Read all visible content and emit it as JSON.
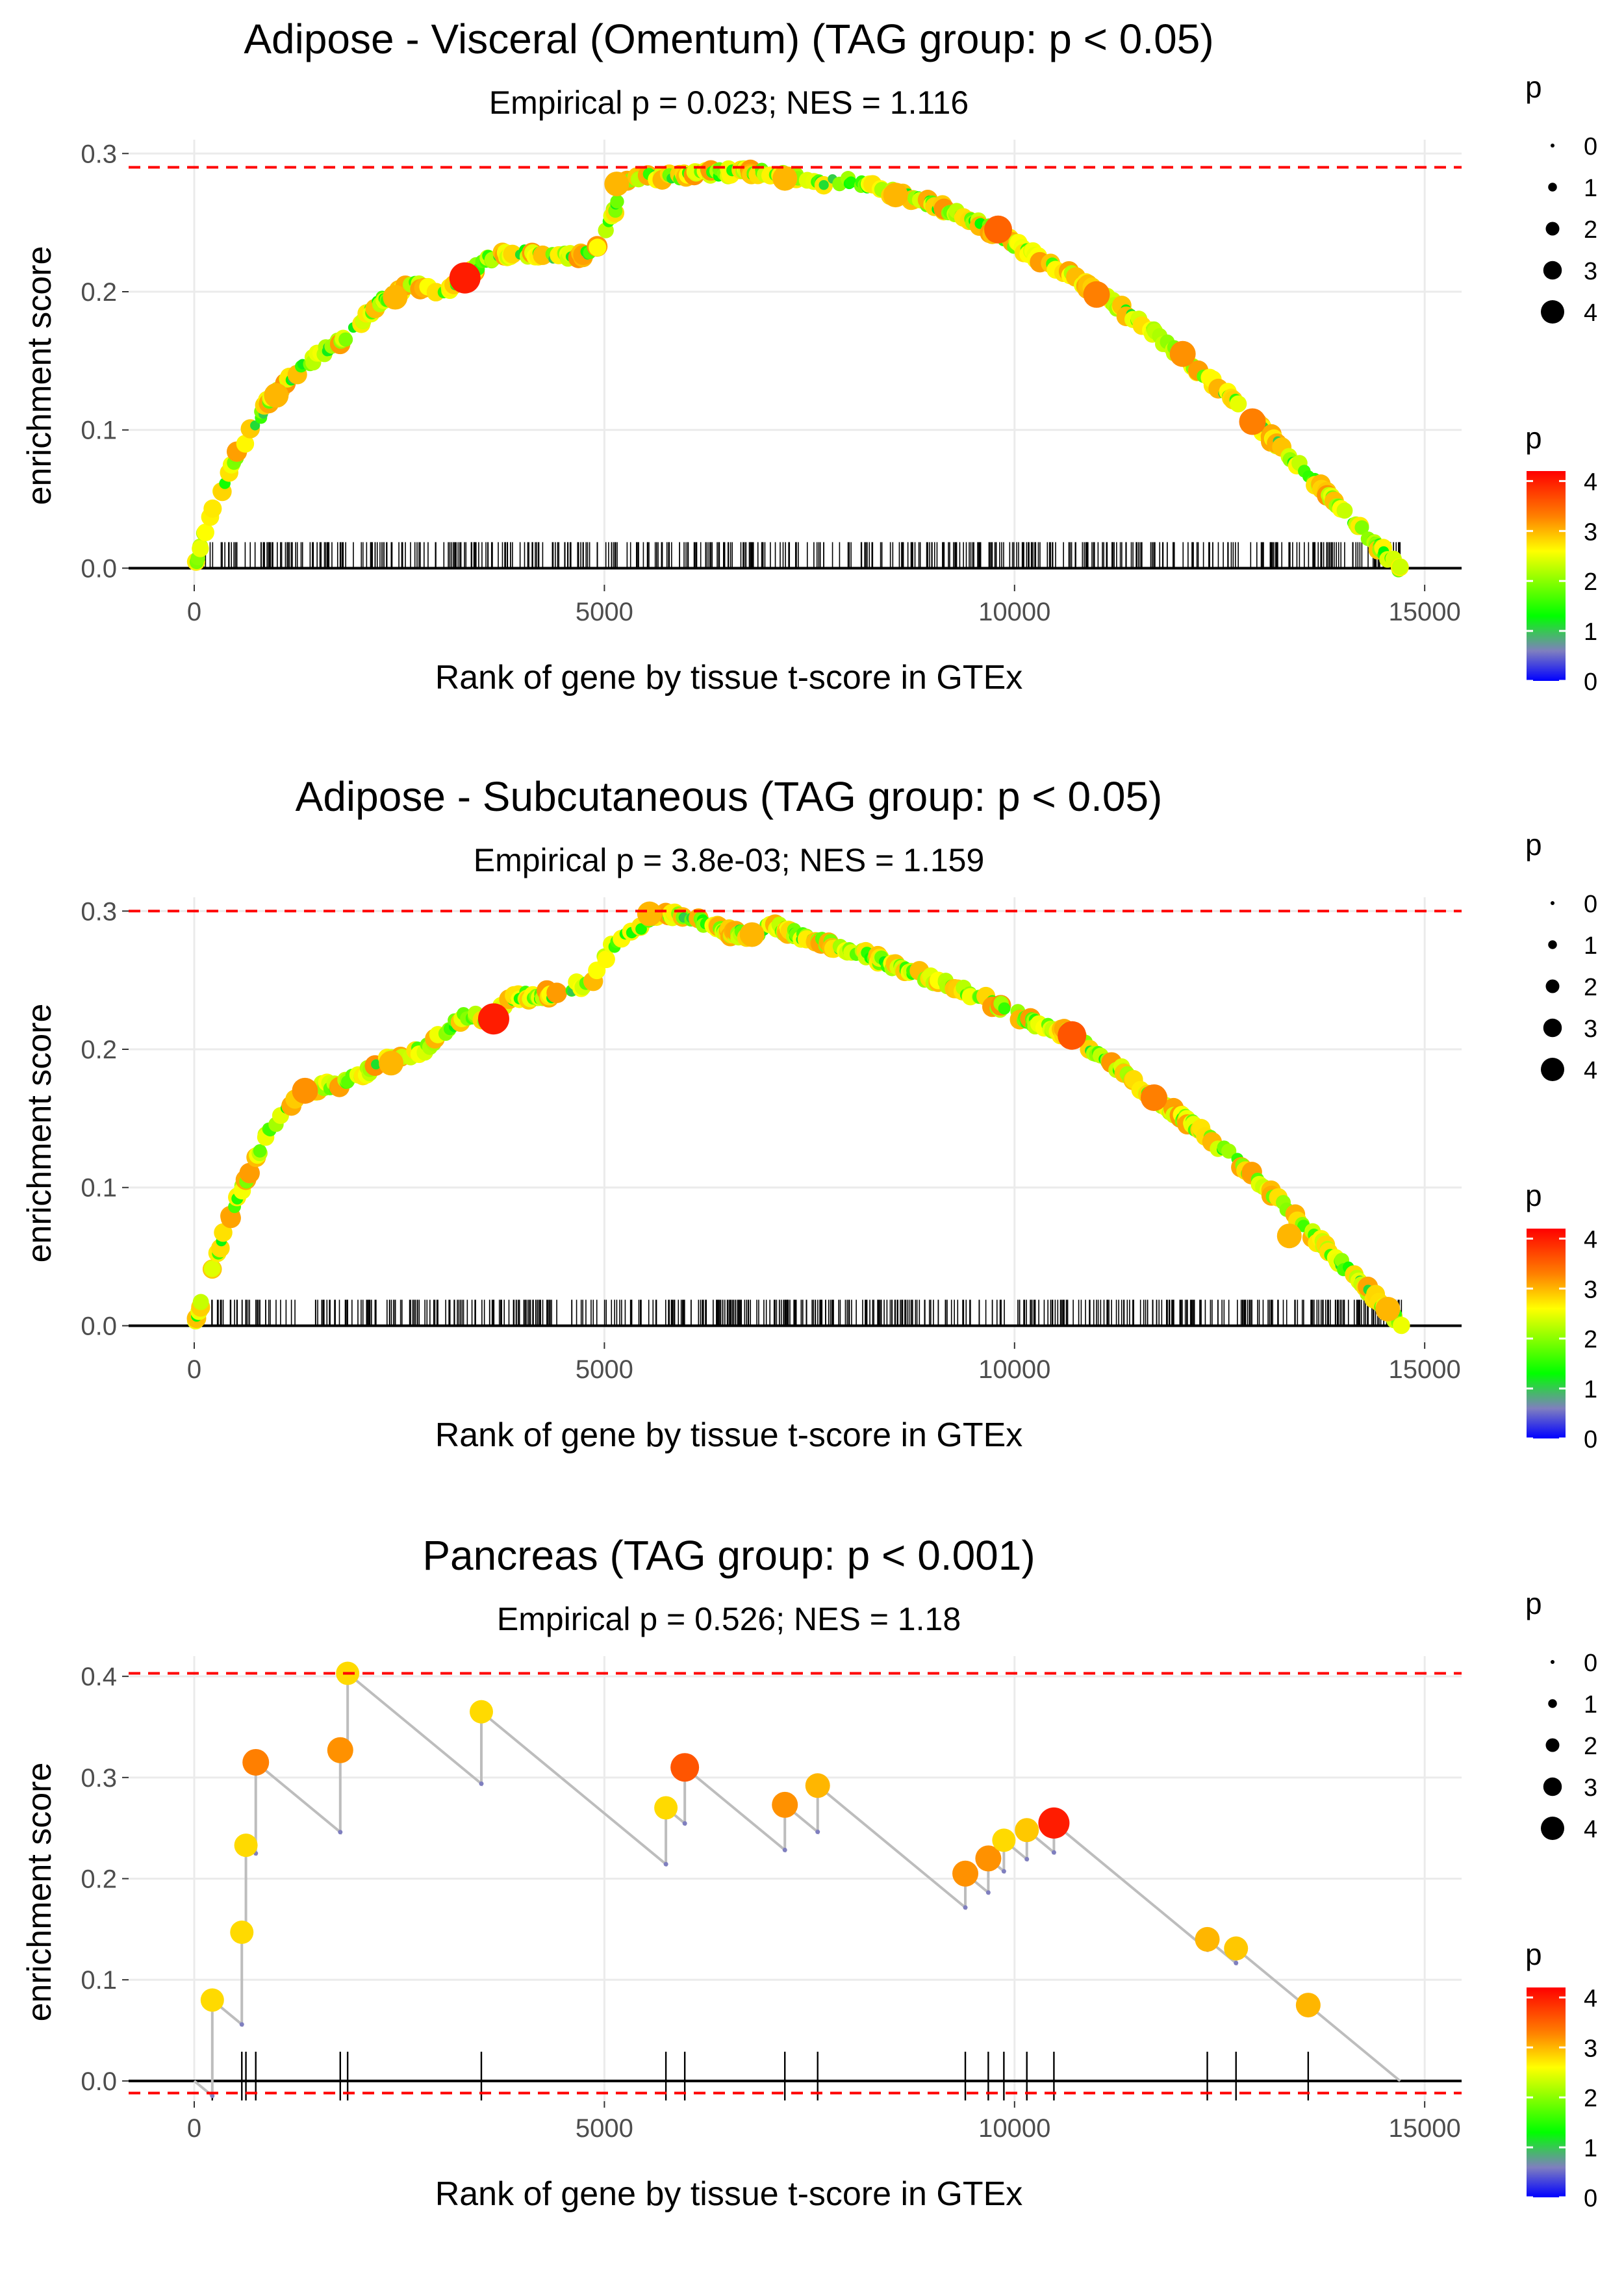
{
  "colors": {
    "threshold": "#ff0000",
    "grid": "#ebebeb",
    "baseline": "#000000",
    "curve": "#bdbdbd",
    "colorbar": [
      "#0000ff",
      "#7f7fbf",
      "#00ff00",
      "#ffff00",
      "#ff7f00",
      "#ff0000"
    ]
  },
  "legend": {
    "size_title": "p",
    "size_labels": [
      "0",
      "1",
      "2",
      "3",
      "4"
    ],
    "color_title": "p",
    "color_labels": [
      "4",
      "3",
      "2",
      "1",
      "0"
    ]
  },
  "chart_data": [
    {
      "type": "scatter",
      "title": "Adipose - Visceral (Omentum) (TAG group: p < 0.05)",
      "subtitle": "Empirical p = 0.023; NES = 1.116",
      "xlabel": "Rank of gene by tissue t-score in GTEx",
      "ylabel": "enrichment score",
      "xlim": [
        -800,
        15450
      ],
      "ylim": [
        -0.012,
        0.31
      ],
      "xticks": [
        0,
        5000,
        10000,
        15000
      ],
      "xtick_labels": [
        "0",
        "5000",
        "10000",
        "15000"
      ],
      "yticks": [
        0.0,
        0.1,
        0.2,
        0.3
      ],
      "ytick_labels": [
        "0.0",
        "0.1",
        "0.2",
        "0.3"
      ],
      "hlines": [
        0.29
      ],
      "grid": true,
      "legend_position": "right",
      "dense_curve": true,
      "n_points": 520,
      "gene_span": [
        0,
        14700
      ],
      "curve": [
        [
          0,
          0
        ],
        [
          150,
          0.03
        ],
        [
          500,
          0.08
        ],
        [
          900,
          0.12
        ],
        [
          1300,
          0.145
        ],
        [
          1800,
          0.165
        ],
        [
          2300,
          0.195
        ],
        [
          2700,
          0.205
        ],
        [
          3000,
          0.2
        ],
        [
          3300,
          0.21
        ],
        [
          3600,
          0.225
        ],
        [
          4100,
          0.228
        ],
        [
          4600,
          0.225
        ],
        [
          4900,
          0.23
        ],
        [
          5300,
          0.282
        ],
        [
          5800,
          0.284
        ],
        [
          6300,
          0.286
        ],
        [
          6900,
          0.287
        ],
        [
          7500,
          0.28
        ],
        [
          8000,
          0.28
        ],
        [
          8600,
          0.27
        ],
        [
          9300,
          0.258
        ],
        [
          9900,
          0.238
        ],
        [
          10500,
          0.218
        ],
        [
          11000,
          0.2
        ],
        [
          11600,
          0.175
        ],
        [
          12100,
          0.15
        ],
        [
          12700,
          0.12
        ],
        [
          13200,
          0.09
        ],
        [
          13700,
          0.06
        ],
        [
          14200,
          0.03
        ],
        [
          14700,
          0
        ]
      ],
      "highlights": [
        {
          "x": 1000,
          "y": 0.125,
          "p": 3.0
        },
        {
          "x": 2450,
          "y": 0.196,
          "p": 3.0
        },
        {
          "x": 3300,
          "y": 0.21,
          "p": 4.0
        },
        {
          "x": 5150,
          "y": 0.278,
          "p": 3.0
        },
        {
          "x": 7200,
          "y": 0.282,
          "p": 3.0
        },
        {
          "x": 8550,
          "y": 0.27,
          "p": 3.0
        },
        {
          "x": 9800,
          "y": 0.245,
          "p": 3.5
        },
        {
          "x": 11000,
          "y": 0.198,
          "p": 3.3
        },
        {
          "x": 12050,
          "y": 0.155,
          "p": 3.2
        },
        {
          "x": 12900,
          "y": 0.106,
          "p": 3.3
        }
      ]
    },
    {
      "type": "scatter",
      "title": "Adipose - Subcutaneous (TAG group: p < 0.05)",
      "subtitle": "Empirical p = 3.8e-03; NES = 1.159",
      "xlabel": "Rank of gene by tissue t-score in GTEx",
      "ylabel": "enrichment score",
      "xlim": [
        -800,
        15450
      ],
      "ylim": [
        -0.012,
        0.31
      ],
      "xticks": [
        0,
        5000,
        10000,
        15000
      ],
      "xtick_labels": [
        "0",
        "5000",
        "10000",
        "15000"
      ],
      "yticks": [
        0.0,
        0.1,
        0.2,
        0.3
      ],
      "ytick_labels": [
        "0.0",
        "0.1",
        "0.2",
        "0.3"
      ],
      "hlines": [
        0.3
      ],
      "grid": true,
      "legend_position": "right",
      "dense_curve": true,
      "n_points": 560,
      "gene_span": [
        0,
        14750
      ],
      "curve": [
        [
          0,
          0
        ],
        [
          150,
          0.03
        ],
        [
          500,
          0.09
        ],
        [
          900,
          0.14
        ],
        [
          1300,
          0.17
        ],
        [
          1800,
          0.175
        ],
        [
          2300,
          0.19
        ],
        [
          2800,
          0.2
        ],
        [
          3300,
          0.225
        ],
        [
          3600,
          0.222
        ],
        [
          3900,
          0.238
        ],
        [
          4400,
          0.24
        ],
        [
          4850,
          0.25
        ],
        [
          5100,
          0.275
        ],
        [
          5600,
          0.295
        ],
        [
          6000,
          0.298
        ],
        [
          6500,
          0.285
        ],
        [
          6900,
          0.282
        ],
        [
          7000,
          0.29
        ],
        [
          7500,
          0.28
        ],
        [
          8100,
          0.27
        ],
        [
          8800,
          0.255
        ],
        [
          9500,
          0.24
        ],
        [
          10200,
          0.22
        ],
        [
          10700,
          0.21
        ],
        [
          11200,
          0.19
        ],
        [
          11700,
          0.165
        ],
        [
          12300,
          0.14
        ],
        [
          12900,
          0.11
        ],
        [
          13400,
          0.08
        ],
        [
          13900,
          0.05
        ],
        [
          14400,
          0.02
        ],
        [
          14750,
          0
        ]
      ],
      "highlights": [
        {
          "x": 1350,
          "y": 0.17,
          "p": 3.2
        },
        {
          "x": 2400,
          "y": 0.19,
          "p": 3.0
        },
        {
          "x": 3650,
          "y": 0.222,
          "p": 4.0
        },
        {
          "x": 5550,
          "y": 0.298,
          "p": 3.0
        },
        {
          "x": 6800,
          "y": 0.283,
          "p": 3.0
        },
        {
          "x": 10700,
          "y": 0.21,
          "p": 3.6
        },
        {
          "x": 11700,
          "y": 0.165,
          "p": 3.3
        },
        {
          "x": 13350,
          "y": 0.065,
          "p": 3.0
        },
        {
          "x": 14550,
          "y": 0.012,
          "p": 3.0
        }
      ]
    },
    {
      "type": "scatter",
      "title": "Pancreas (TAG group: p < 0.001)",
      "subtitle": "Empirical p = 0.526; NES = 1.18",
      "xlabel": "Rank of gene by tissue t-score in GTEx",
      "ylabel": "enrichment score",
      "xlim": [
        -800,
        15450
      ],
      "ylim": [
        -0.02,
        0.42
      ],
      "xticks": [
        0,
        5000,
        10000,
        15000
      ],
      "xtick_labels": [
        "0",
        "5000",
        "10000",
        "15000"
      ],
      "yticks": [
        0.0,
        0.1,
        0.2,
        0.3,
        0.4
      ],
      "ytick_labels": [
        "0.0",
        "0.1",
        "0.2",
        "0.3",
        "0.4"
      ],
      "hlines": [
        0.403,
        -0.012
      ],
      "grid": true,
      "legend_position": "right",
      "dense_curve": false,
      "total_genes": 14700,
      "points": [
        {
          "x": 220,
          "y": 0.08,
          "p": 2.8
        },
        {
          "x": 580,
          "y": 0.147,
          "p": 2.8
        },
        {
          "x": 630,
          "y": 0.233,
          "p": 2.8
        },
        {
          "x": 750,
          "y": 0.315,
          "p": 3.3
        },
        {
          "x": 1780,
          "y": 0.327,
          "p": 3.2
        },
        {
          "x": 1870,
          "y": 0.403,
          "p": 2.8
        },
        {
          "x": 3500,
          "y": 0.365,
          "p": 2.8
        },
        {
          "x": 5750,
          "y": 0.27,
          "p": 2.8
        },
        {
          "x": 5980,
          "y": 0.31,
          "p": 3.6
        },
        {
          "x": 7200,
          "y": 0.273,
          "p": 3.2
        },
        {
          "x": 7600,
          "y": 0.292,
          "p": 3.0
        },
        {
          "x": 9400,
          "y": 0.205,
          "p": 3.2
        },
        {
          "x": 9680,
          "y": 0.22,
          "p": 3.2
        },
        {
          "x": 9870,
          "y": 0.238,
          "p": 2.8
        },
        {
          "x": 10150,
          "y": 0.248,
          "p": 2.9
        },
        {
          "x": 10480,
          "y": 0.255,
          "p": 4.0
        },
        {
          "x": 12350,
          "y": 0.14,
          "p": 3.0
        },
        {
          "x": 12700,
          "y": 0.131,
          "p": 2.9
        },
        {
          "x": 13580,
          "y": 0.075,
          "p": 3.0
        }
      ]
    }
  ]
}
